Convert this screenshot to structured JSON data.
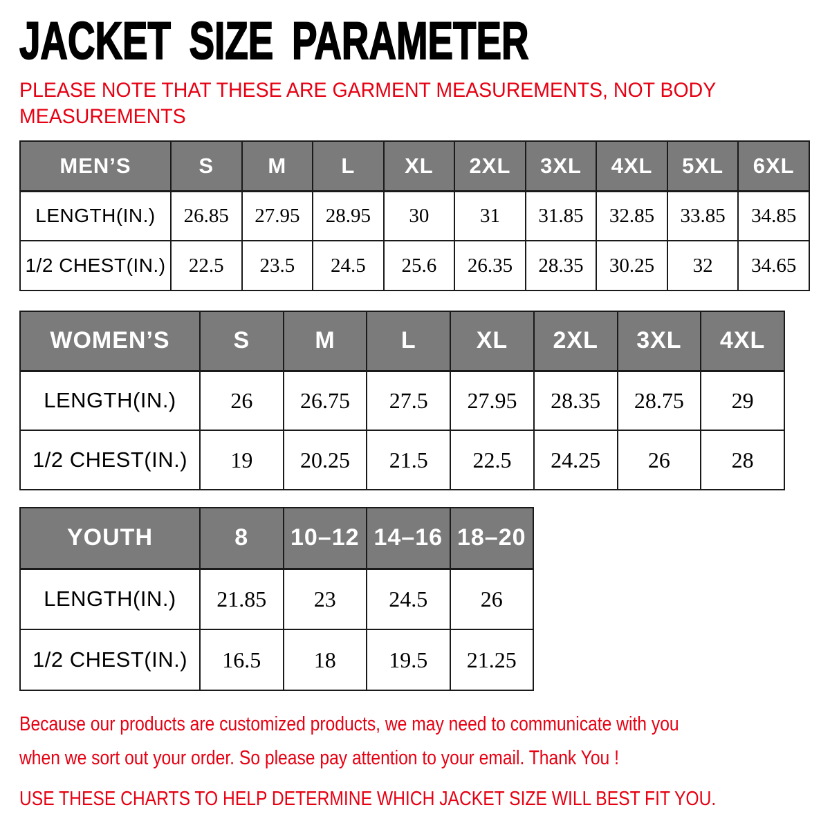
{
  "title": "JACKET SIZE PARAMETER",
  "note": {
    "lines": [
      "PLEASE NOTE THAT THESE ARE GARMENT MEASUREMENTS, NOT BODY",
      "MEASUREMENTS"
    ]
  },
  "tables": [
    {
      "id": "mens",
      "header_label": "MEN’S",
      "sizes": [
        "S",
        "M",
        "L",
        "XL",
        "2XL",
        "3XL",
        "4XL",
        "5XL",
        "6XL"
      ],
      "rows": [
        {
          "label": "LENGTH(IN.)",
          "values": [
            "26.85",
            "27.95",
            "28.95",
            "30",
            "31",
            "31.85",
            "32.85",
            "33.85",
            "34.85"
          ]
        },
        {
          "label": "1/2 CHEST(IN.)",
          "values": [
            "22.5",
            "23.5",
            "24.5",
            "25.6",
            "26.35",
            "28.35",
            "30.25",
            "32",
            "34.65"
          ]
        }
      ]
    },
    {
      "id": "womens",
      "header_label": "WOMEN’S",
      "sizes": [
        "S",
        "M",
        "L",
        "XL",
        "2XL",
        "3XL",
        "4XL"
      ],
      "rows": [
        {
          "label": "LENGTH(IN.)",
          "values": [
            "26",
            "26.75",
            "27.5",
            "27.95",
            "28.35",
            "28.75",
            "29"
          ]
        },
        {
          "label": "1/2 CHEST(IN.)",
          "values": [
            "19",
            "20.25",
            "21.5",
            "22.5",
            "24.25",
            "26",
            "28"
          ]
        }
      ]
    },
    {
      "id": "youth",
      "header_label": "YOUTH",
      "sizes": [
        "8",
        "10–12",
        "14–16",
        "18–20"
      ],
      "rows": [
        {
          "label": "LENGTH(IN.)",
          "values": [
            "21.85",
            "23",
            "24.5",
            "26"
          ]
        },
        {
          "label": "1/2 CHEST(IN.)",
          "values": [
            "16.5",
            "18",
            "19.5",
            "21.25"
          ]
        }
      ]
    }
  ],
  "footer": {
    "lines": [
      "Because our products are customized products, we may need to communicate with you",
      "when we sort out your order. So please pay attention to your email. Thank You !"
    ],
    "final_line": "USE THESE CHARTS TO HELP DETERMINE WHICH JACKET SIZE WILL BEST FIT YOU."
  },
  "colors": {
    "accent_red": "#e60012",
    "table_header_bg": "#7b7b7b",
    "table_header_text": "#ffffff",
    "table_border": "#1a1a1a",
    "title_black": "#000000"
  }
}
